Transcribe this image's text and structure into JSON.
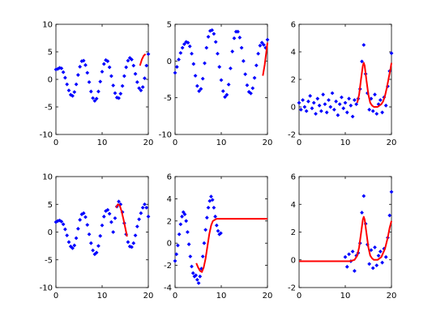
{
  "figure": {
    "rows": 2,
    "cols": 3,
    "colors": {
      "points": "#0000ff",
      "fit": "#ff0000",
      "axes": "#000000",
      "background": "#ffffff"
    }
  },
  "chart_data": [
    {
      "type": "scatter",
      "panel": "top-left",
      "xlim": [
        0,
        20
      ],
      "ylim": [
        -10,
        10
      ],
      "xticks": [
        0,
        10,
        20
      ],
      "yticks": [
        -10,
        -5,
        0,
        5,
        10
      ],
      "xtick_labels": [
        "0",
        "10",
        "20"
      ],
      "ytick_labels": [
        "-10",
        "-5",
        "0",
        "5",
        "10"
      ],
      "title": "",
      "xlabel": "",
      "ylabel": "",
      "grid": false,
      "fit": {
        "x": [
          18.2,
          18.6,
          19.0,
          19.4
        ],
        "y": [
          2.5,
          3.6,
          4.3,
          4.6
        ]
      },
      "points": {
        "x": [
          0.0,
          0.4,
          0.8,
          1.2,
          1.6,
          2.0,
          2.4,
          2.8,
          3.2,
          3.6,
          4.0,
          4.4,
          4.8,
          5.2,
          5.6,
          6.0,
          6.4,
          6.8,
          7.2,
          7.6,
          8.0,
          8.4,
          8.8,
          9.2,
          9.6,
          10.0,
          10.4,
          10.8,
          11.2,
          11.6,
          12.0,
          12.4,
          12.8,
          13.2,
          13.6,
          14.0,
          14.4,
          14.8,
          15.2,
          15.6,
          16.0,
          16.4,
          16.8,
          17.2,
          17.6,
          18.0,
          18.4,
          18.8,
          19.2,
          19.6,
          20.0
        ],
        "y": [
          1.8,
          1.9,
          2.1,
          2.0,
          1.3,
          0.3,
          -0.9,
          -2.0,
          -2.8,
          -3.0,
          -2.3,
          -0.9,
          0.8,
          2.3,
          3.3,
          3.4,
          2.6,
          1.2,
          -0.5,
          -2.2,
          -3.4,
          -3.9,
          -3.5,
          -2.2,
          -0.4,
          1.4,
          2.8,
          3.5,
          3.3,
          2.2,
          0.6,
          -1.1,
          -2.5,
          -3.3,
          -3.4,
          -2.6,
          -1.2,
          0.6,
          2.2,
          3.4,
          3.9,
          3.6,
          2.5,
          1.0,
          -0.5,
          -1.6,
          -2.0,
          -1.4,
          0.2,
          2.5,
          4.6
        ]
      }
    },
    {
      "type": "scatter",
      "panel": "top-middle",
      "xlim": [
        0,
        20
      ],
      "ylim": [
        -10,
        5
      ],
      "xticks": [
        0,
        10,
        20
      ],
      "yticks": [
        -10,
        -5,
        0,
        5
      ],
      "xtick_labels": [
        "0",
        "10",
        "20"
      ],
      "ytick_labels": [
        "-10",
        "-5",
        "0",
        "5"
      ],
      "title": "",
      "xlabel": "",
      "ylabel": "",
      "grid": false,
      "fit": {
        "x": [
          19.0,
          19.4,
          19.8,
          20.0
        ],
        "y": [
          -2.0,
          -0.5,
          1.5,
          2.5
        ]
      },
      "points": {
        "x": [
          0.0,
          0.4,
          0.8,
          1.2,
          1.6,
          2.0,
          2.4,
          2.8,
          3.2,
          3.6,
          4.0,
          4.4,
          4.8,
          5.2,
          5.6,
          6.0,
          6.4,
          6.8,
          7.2,
          7.6,
          8.0,
          8.4,
          8.8,
          9.2,
          9.6,
          10.0,
          10.4,
          10.8,
          11.2,
          11.6,
          12.0,
          12.4,
          12.8,
          13.2,
          13.6,
          14.0,
          14.4,
          14.8,
          15.2,
          15.6,
          16.0,
          16.4,
          16.8,
          17.2,
          17.6,
          18.0,
          18.4,
          18.8,
          19.2,
          19.6,
          20.0
        ],
        "y": [
          -1.6,
          -0.8,
          0.2,
          1.1,
          1.8,
          2.3,
          2.6,
          2.5,
          2.0,
          1.0,
          -0.4,
          -2.0,
          -3.4,
          -4.1,
          -3.8,
          -2.4,
          -0.3,
          1.8,
          3.3,
          4.1,
          4.2,
          3.7,
          2.6,
          1.0,
          -0.8,
          -2.6,
          -4.1,
          -4.9,
          -4.6,
          -3.2,
          -1.0,
          1.3,
          3.1,
          4.0,
          4.0,
          3.2,
          1.8,
          0.0,
          -1.8,
          -3.3,
          -4.2,
          -4.4,
          -3.7,
          -2.3,
          -0.6,
          1.0,
          2.1,
          2.5,
          2.2,
          1.8,
          2.9
        ]
      }
    },
    {
      "type": "scatter",
      "panel": "top-right",
      "xlim": [
        0,
        20
      ],
      "ylim": [
        -2,
        6
      ],
      "xticks": [
        0,
        10,
        20
      ],
      "yticks": [
        -2,
        0,
        2,
        4,
        6
      ],
      "xtick_labels": [
        "0",
        "10",
        "20"
      ],
      "ytick_labels": [
        "-2",
        "0",
        "2",
        "4",
        "6"
      ],
      "title": "",
      "xlabel": "",
      "ylabel": "",
      "grid": false,
      "fit": {
        "x": [
          12.6,
          13.0,
          13.4,
          13.8,
          14.0,
          14.2,
          14.6,
          15.0,
          15.4,
          15.8,
          16.2,
          16.6,
          17.0,
          17.4,
          17.8,
          18.2,
          18.6,
          19.0,
          19.4,
          19.8,
          20.0
        ],
        "y": [
          0.3,
          0.9,
          2.0,
          3.0,
          3.2,
          3.0,
          1.9,
          0.9,
          0.3,
          0.1,
          0.0,
          0.0,
          0.0,
          0.1,
          0.2,
          0.4,
          0.8,
          1.4,
          2.1,
          2.8,
          3.2
        ]
      },
      "points": {
        "x": [
          0.0,
          0.4,
          0.8,
          1.2,
          1.6,
          2.0,
          2.4,
          2.8,
          3.2,
          3.6,
          4.0,
          4.4,
          4.8,
          5.2,
          5.6,
          6.0,
          6.4,
          6.8,
          7.2,
          7.6,
          8.0,
          8.4,
          8.8,
          9.2,
          9.6,
          10.0,
          10.4,
          10.8,
          11.2,
          11.6,
          12.0,
          12.4,
          12.8,
          13.2,
          13.6,
          14.0,
          14.4,
          14.8,
          15.2,
          15.6,
          16.0,
          16.4,
          16.8,
          17.2,
          17.6,
          18.0,
          18.4,
          18.8,
          19.2,
          19.6,
          20.0
        ],
        "y": [
          0.3,
          -0.2,
          0.5,
          0.0,
          -0.3,
          0.4,
          0.8,
          -0.1,
          0.3,
          -0.5,
          0.6,
          0.1,
          -0.3,
          0.9,
          0.2,
          -0.4,
          0.5,
          0.0,
          1.0,
          -0.2,
          0.4,
          -0.6,
          0.2,
          0.7,
          -0.1,
          0.3,
          -0.4,
          0.6,
          0.1,
          -0.7,
          0.5,
          0.2,
          0.6,
          1.3,
          3.3,
          4.5,
          2.4,
          1.0,
          -0.2,
          0.6,
          -0.3,
          0.9,
          -0.5,
          0.2,
          0.5,
          -0.4,
          0.7,
          0.1,
          1.5,
          2.6,
          3.9
        ]
      }
    },
    {
      "type": "scatter",
      "panel": "bottom-left",
      "xlim": [
        0,
        20
      ],
      "ylim": [
        -10,
        10
      ],
      "xticks": [
        0,
        10,
        20
      ],
      "yticks": [
        -10,
        -5,
        0,
        5,
        10
      ],
      "xtick_labels": [
        "0",
        "10",
        "20"
      ],
      "ytick_labels": [
        "-10",
        "-5",
        "0",
        "5",
        "10"
      ],
      "title": "",
      "xlabel": "",
      "ylabel": "",
      "grid": false,
      "fit": {
        "x": [
          13.0,
          13.4,
          13.8,
          14.2,
          14.6,
          15.0,
          15.4
        ],
        "y": [
          4.4,
          5.0,
          4.8,
          3.8,
          2.4,
          0.8,
          -0.8
        ]
      },
      "points": {
        "x": [
          0.0,
          0.4,
          0.8,
          1.2,
          1.6,
          2.0,
          2.4,
          2.8,
          3.2,
          3.6,
          4.0,
          4.4,
          4.8,
          5.2,
          5.6,
          6.0,
          6.4,
          6.8,
          7.2,
          7.6,
          8.0,
          8.4,
          8.8,
          9.2,
          9.6,
          10.0,
          10.4,
          10.8,
          11.2,
          11.6,
          12.0,
          12.4,
          12.8,
          13.2,
          13.6,
          14.0,
          14.4,
          14.8,
          15.2,
          15.6,
          16.0,
          16.4,
          16.8,
          17.2,
          17.6,
          18.0,
          18.4,
          18.8,
          19.2,
          19.6,
          20.0
        ],
        "y": [
          1.8,
          2.0,
          2.1,
          1.9,
          1.4,
          0.5,
          -0.6,
          -1.8,
          -2.6,
          -2.9,
          -2.4,
          -1.1,
          0.6,
          2.2,
          3.2,
          3.4,
          2.7,
          1.3,
          -0.4,
          -2.0,
          -3.3,
          -4.0,
          -3.7,
          -2.5,
          -0.7,
          1.2,
          2.8,
          3.8,
          4.0,
          3.3,
          1.8,
          0.0,
          2.5,
          4.6,
          5.5,
          5.0,
          3.6,
          1.6,
          -0.4,
          -1.8,
          -2.6,
          -2.7,
          -2.0,
          -0.6,
          1.0,
          2.3,
          3.4,
          4.4,
          5.0,
          4.4,
          2.8
        ]
      }
    },
    {
      "type": "scatter",
      "panel": "bottom-middle",
      "xlim": [
        0,
        20
      ],
      "ylim": [
        -4,
        6
      ],
      "xticks": [
        0,
        10,
        20
      ],
      "yticks": [
        -4,
        -2,
        0,
        2,
        4,
        6
      ],
      "xtick_labels": [
        "0",
        "10",
        "20"
      ],
      "ytick_labels": [
        "-4",
        "-2",
        "0",
        "2",
        "4",
        "6"
      ],
      "title": "",
      "xlabel": "",
      "ylabel": "",
      "grid": false,
      "fit": {
        "x": [
          4.6,
          5.0,
          5.4,
          5.8,
          6.2,
          6.6,
          7.0,
          7.4,
          7.8,
          8.2,
          8.6,
          9.0,
          9.6,
          10.0,
          12.0,
          14.0,
          16.0,
          18.0,
          20.0
        ],
        "y": [
          -1.8,
          -2.2,
          -2.5,
          -2.6,
          -2.2,
          -1.4,
          -0.3,
          0.8,
          1.6,
          2.0,
          2.1,
          2.2,
          2.2,
          2.2,
          2.2,
          2.2,
          2.2,
          2.2,
          2.2
        ]
      },
      "points": {
        "x": [
          0.0,
          0.3,
          0.6,
          0.9,
          1.2,
          1.5,
          1.8,
          2.1,
          2.4,
          2.7,
          3.0,
          3.3,
          3.6,
          3.9,
          4.2,
          4.5,
          4.8,
          5.1,
          5.4,
          5.7,
          6.0,
          6.3,
          6.6,
          6.9,
          7.2,
          7.5,
          7.8,
          8.1,
          8.4,
          8.7,
          9.0,
          9.3,
          9.6,
          9.9
        ],
        "y": [
          -1.6,
          -1.0,
          -0.2,
          0.8,
          1.7,
          2.4,
          2.8,
          2.6,
          2.0,
          1.0,
          -0.1,
          -1.2,
          -2.1,
          -2.7,
          -3.0,
          -2.9,
          -3.3,
          -3.6,
          -3.0,
          -2.3,
          -1.2,
          0.0,
          1.2,
          2.3,
          3.2,
          3.8,
          4.2,
          3.9,
          3.2,
          2.4,
          1.6,
          1.1,
          0.8,
          0.9
        ]
      }
    },
    {
      "type": "scatter",
      "panel": "bottom-right",
      "xlim": [
        0,
        20
      ],
      "ylim": [
        -2,
        6
      ],
      "xticks": [
        0,
        10,
        20
      ],
      "yticks": [
        -2,
        0,
        2,
        4,
        6
      ],
      "xtick_labels": [
        "0",
        "10",
        "20"
      ],
      "ytick_labels": [
        "-2",
        "0",
        "2",
        "4",
        "6"
      ],
      "title": "",
      "xlabel": "",
      "ylabel": "",
      "grid": false,
      "fit": {
        "x": [
          0.0,
          2.0,
          4.0,
          6.0,
          8.0,
          10.0,
          11.0,
          12.0,
          12.6,
          13.0,
          13.4,
          13.8,
          14.0,
          14.2,
          14.6,
          15.0,
          15.4,
          15.8,
          16.2,
          17.0,
          17.8,
          18.6,
          19.2,
          19.6,
          20.0
        ],
        "y": [
          -0.1,
          -0.1,
          -0.1,
          -0.1,
          -0.1,
          -0.1,
          -0.1,
          0.0,
          0.3,
          0.9,
          1.9,
          2.9,
          3.1,
          2.9,
          1.9,
          0.9,
          0.3,
          0.1,
          0.0,
          0.0,
          0.2,
          0.8,
          1.6,
          2.3,
          2.8
        ]
      },
      "points": {
        "x": [
          10.0,
          10.4,
          10.8,
          11.2,
          11.6,
          12.0,
          12.4,
          12.8,
          13.2,
          13.6,
          14.0,
          14.4,
          14.8,
          15.2,
          15.6,
          16.0,
          16.4,
          16.8,
          17.2,
          17.6,
          18.0,
          18.4,
          18.8,
          19.2,
          19.6,
          20.0
        ],
        "y": [
          0.2,
          -0.5,
          0.4,
          -0.1,
          0.6,
          -0.8,
          0.3,
          0.5,
          1.2,
          3.4,
          4.6,
          2.6,
          1.1,
          -0.3,
          0.7,
          -0.6,
          0.9,
          -0.4,
          0.3,
          0.6,
          -0.2,
          0.8,
          0.2,
          1.6,
          3.2,
          4.9
        ]
      }
    }
  ]
}
